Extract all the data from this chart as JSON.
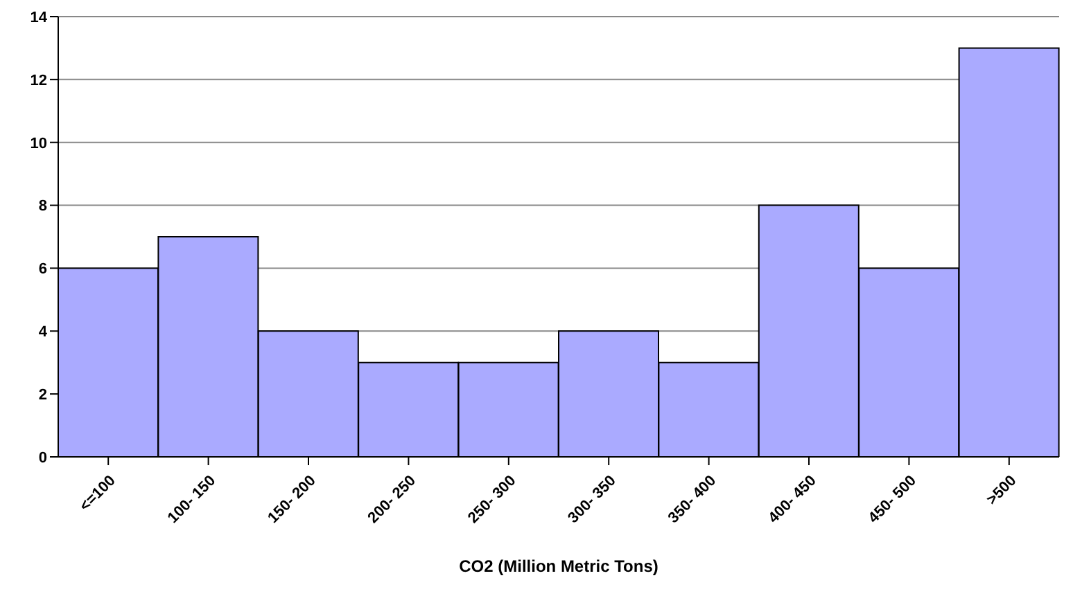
{
  "chart_data": {
    "type": "bar",
    "xlabel": "CO2 (Million Metric Tons)",
    "categories": [
      "<=100",
      "100- 150",
      "150- 200",
      "200- 250",
      "250- 300",
      "300- 350",
      "350- 400",
      "400- 450",
      "450- 500",
      ">500"
    ],
    "values": [
      6,
      7,
      4,
      3,
      3,
      4,
      3,
      8,
      6,
      13
    ],
    "color": "#aaaaff",
    "ylim": [
      0,
      14
    ],
    "yticks": [
      0,
      2,
      4,
      6,
      8,
      10,
      12,
      14
    ],
    "grid": "y",
    "legend": false
  }
}
